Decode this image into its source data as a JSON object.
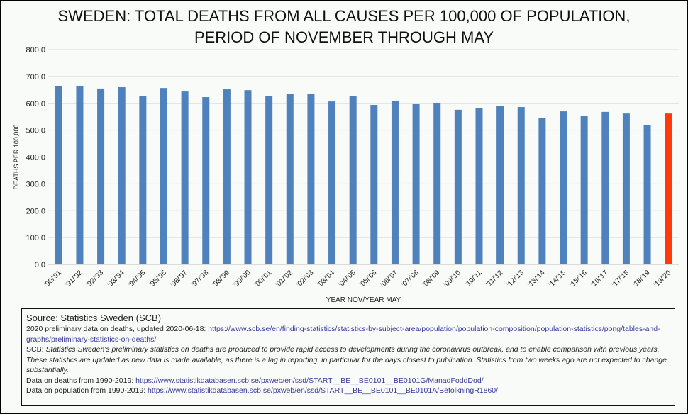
{
  "chart_data": {
    "type": "bar",
    "title_line1": "SWEDEN:  TOTAL DEATHS FROM ALL CAUSES PER 100,000 OF POPULATION,",
    "title_line2": "PERIOD OF NOVEMBER THROUGH MAY",
    "xlabel": "YEAR NOV/YEAR MAY",
    "ylabel": "DEATHS PER 100,000",
    "ylim": [
      0,
      800
    ],
    "yticks": [
      "0.0",
      "100.0",
      "200.0",
      "300.0",
      "400.0",
      "500.0",
      "600.0",
      "700.0",
      "800.0"
    ],
    "grid": true,
    "categories": [
      "'90/'91",
      "'91/'92",
      "'92/'93",
      "'93/'94",
      "'94/'95",
      "'95/'96",
      "'96/'97",
      "'97/'98",
      "'98/'99",
      "'99/'00",
      "'00/'01",
      "'01/'02",
      "'02/'03",
      "'03/'04",
      "'04/'05",
      "'05/'06",
      "'06/'07",
      "'07/'08",
      "'08/'09",
      "'09/'10",
      "'10/'11",
      "'11/'12",
      "'12/'13",
      "'13/'14",
      "'14/'15",
      "'15/'16",
      "'16/'17",
      "'17/'18",
      "'18/'19",
      "'19/'20"
    ],
    "values": [
      663,
      665,
      655,
      660,
      628,
      657,
      644,
      623,
      652,
      649,
      626,
      636,
      634,
      607,
      626,
      594,
      610,
      599,
      602,
      576,
      581,
      589,
      586,
      546,
      570,
      554,
      568,
      562,
      520,
      562
    ],
    "colors": {
      "default": "#4f81bd",
      "highlight": "#ff3a0a"
    },
    "highlight_index": 29
  },
  "notes": {
    "source": "Source: Statistics Sweden (SCB)",
    "prelim_label": "2020 preliminary data on deaths, updated 2020-06-18: ",
    "prelim_url": "https://www.scb.se/en/finding-statistics/statistics-by-subject-area/population/population-composition/population-statistics/pong/tables-and-graphs/preliminary-statistics-on-deaths/",
    "scb_label": "SCB: ",
    "scb_quote": "Statistics Sweden's preliminary statistics on deaths are produced to provide rapid access to developments during the coronavirus outbreak, and to enable comparison with previous years. These statistics are updated as new data is made available, as there is a lag in reporting, in particular for the days closest to publication. Statistics from two weeks ago are not expected to change substantially.",
    "deaths_label": "Data on deaths from 1990-2019: ",
    "deaths_url": "https://www.statistikdatabasen.scb.se/pxweb/en/ssd/START__BE__BE0101__BE0101G/ManadFoddDod/",
    "pop_label": "Data on population from 1990-2019: ",
    "pop_url": "https://www.statistikdatabasen.scb.se/pxweb/en/ssd/START__BE__BE0101__BE0101A/BefolkningR1860/"
  }
}
